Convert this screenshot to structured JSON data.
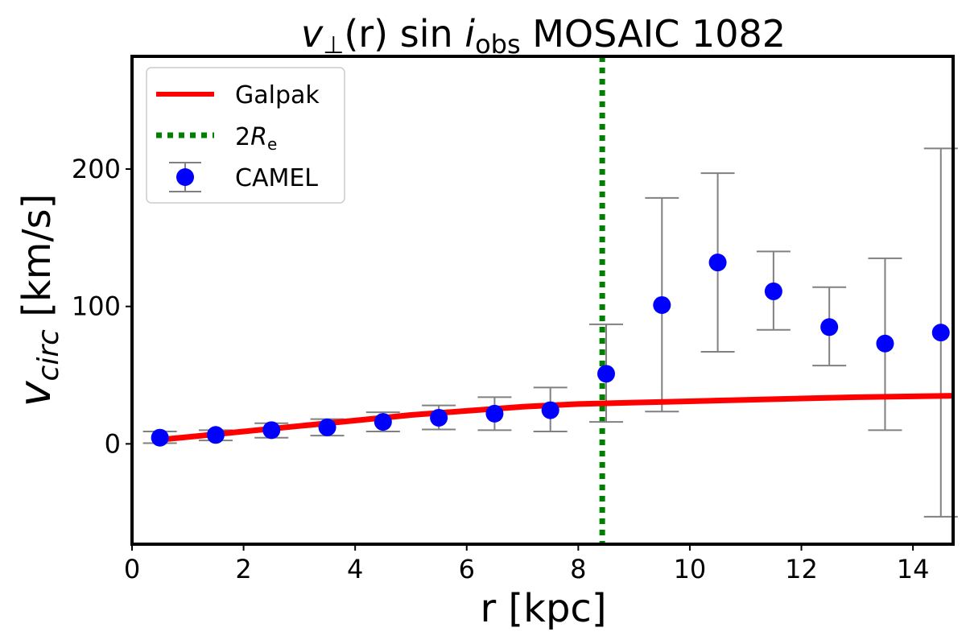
{
  "chart_data": {
    "type": "scatter",
    "title": {
      "v": "v",
      "perp": "⊥",
      "mid": "(r) sin ",
      "i": "i",
      "sub": "obs",
      "rest": " MOSAIC 1082"
    },
    "xlabel": "r [kpc]",
    "ylabel": {
      "v": "v",
      "sub": "circ",
      "rest": " [km/s]"
    },
    "xlim": [
      0,
      14.72
    ],
    "ylim": [
      -73,
      282
    ],
    "xticks": [
      0,
      2,
      4,
      6,
      8,
      10,
      12,
      14
    ],
    "yticks": [
      0,
      100,
      200
    ],
    "grid": false,
    "legend_position": "top-left",
    "legend": [
      {
        "label": "Galpak",
        "kind": "line"
      },
      {
        "label_main": "2",
        "label_r": "R",
        "label_sub": "e",
        "kind": "vline"
      },
      {
        "label": "CAMEL",
        "kind": "errorbar"
      }
    ],
    "series": [
      {
        "name": "Galpak",
        "kind": "line",
        "color": "#ff0000",
        "x": [
          0.5,
          1,
          2,
          3,
          4,
          5,
          6,
          7,
          8,
          9,
          10,
          11,
          12,
          13,
          14.72
        ],
        "y": [
          3,
          5,
          9,
          13,
          17,
          21,
          24,
          27,
          29,
          30,
          31,
          32,
          33,
          34,
          35
        ]
      },
      {
        "name": "2Re",
        "kind": "vline",
        "color": "#008000",
        "x": 8.43
      },
      {
        "name": "CAMEL",
        "kind": "errorbar",
        "color": "#0000ff",
        "errcolor": "#808080",
        "x": [
          0.5,
          1.5,
          2.5,
          3.5,
          4.5,
          5.5,
          6.5,
          7.5,
          8.5,
          9.5,
          10.5,
          11.5,
          12.5,
          13.5,
          14.5
        ],
        "y": [
          4.5,
          6.5,
          10,
          12,
          16,
          19,
          22,
          24.5,
          51,
          101,
          132,
          111,
          85,
          73,
          81
        ],
        "y_upper": [
          9,
          10,
          15,
          18,
          23,
          28,
          34,
          41,
          87,
          179,
          197,
          140,
          114,
          135,
          215
        ],
        "y_lower": [
          0.5,
          2.5,
          4.5,
          6,
          9,
          10.5,
          10,
          9,
          16,
          23.5,
          67,
          83,
          57,
          10,
          -53
        ]
      }
    ]
  }
}
